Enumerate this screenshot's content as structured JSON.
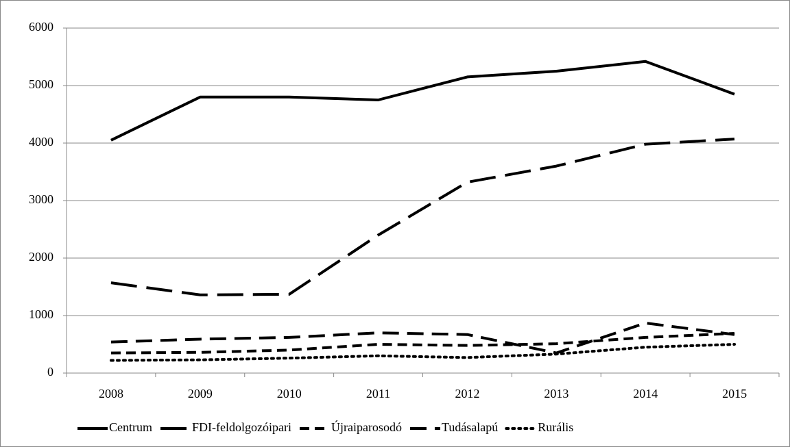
{
  "chart_data": {
    "type": "line",
    "categories": [
      "2008",
      "2009",
      "2010",
      "2011",
      "2012",
      "2013",
      "2014",
      "2015"
    ],
    "series": [
      {
        "name": "Centrum",
        "color": "#000000",
        "style": "solid",
        "values": [
          4050,
          4800,
          4800,
          4750,
          5150,
          5250,
          5420,
          4850
        ]
      },
      {
        "name": "FDI-feldolgozóipari",
        "color": "#000000",
        "style": "long-dash",
        "values": [
          1570,
          1360,
          1370,
          2400,
          3320,
          3600,
          3980,
          4070
        ]
      },
      {
        "name": "Újraiparosodó",
        "color": "#000000",
        "style": "dash",
        "values": [
          350,
          360,
          400,
          500,
          480,
          510,
          620,
          690
        ]
      },
      {
        "name": "Tudásalapú",
        "color": "#000000",
        "style": "medium-dash",
        "values": [
          540,
          590,
          620,
          700,
          670,
          350,
          870,
          670
        ]
      },
      {
        "name": "Rurális",
        "color": "#000000",
        "style": "dot",
        "values": [
          220,
          230,
          260,
          300,
          270,
          330,
          450,
          500
        ]
      }
    ],
    "ylim": [
      0,
      6000
    ],
    "yticks": [
      0,
      1000,
      2000,
      3000,
      4000,
      5000,
      6000
    ],
    "grid": true,
    "legend": "bottom"
  }
}
